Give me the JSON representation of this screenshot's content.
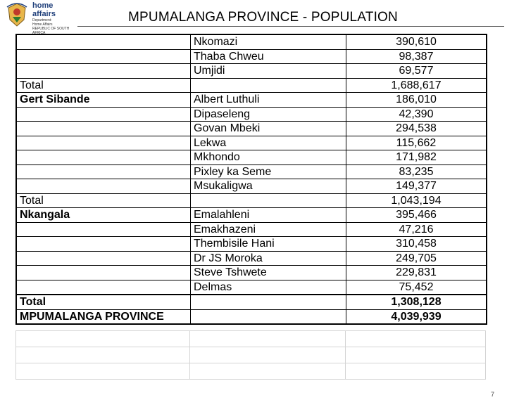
{
  "header": {
    "logo_line1": "home affairs",
    "logo_line2": "Department:",
    "logo_line3": "Home Affairs",
    "logo_line4": "REPUBLIC OF SOUTH AFRICA",
    "title": "MPUMALANGA PROVINCE - POPULATION"
  },
  "table": {
    "rows": [
      {
        "district": "",
        "municipality": "Nkomazi",
        "population": "390,610"
      },
      {
        "district": "",
        "municipality": "Thaba Chweu",
        "population": "98,387"
      },
      {
        "district": "",
        "municipality": "Umjidi",
        "population": "69,577"
      },
      {
        "district": "Total",
        "municipality": "",
        "population": "1,688,617"
      },
      {
        "district": "Gert Sibande",
        "municipality": "Albert Luthuli",
        "population": "186,010"
      },
      {
        "district": "",
        "municipality": "Dipaseleng",
        "population": "42,390"
      },
      {
        "district": "",
        "municipality": "Govan Mbeki",
        "population": "294,538"
      },
      {
        "district": "",
        "municipality": "Lekwa",
        "population": "115,662"
      },
      {
        "district": "",
        "municipality": "Mkhondo",
        "population": "171,982"
      },
      {
        "district": "",
        "municipality": "Pixley ka Seme",
        "population": "83,235"
      },
      {
        "district": "",
        "municipality": "Msukaligwa",
        "population": "149,377"
      },
      {
        "district": "Total",
        "municipality": "",
        "population": "1,043,194"
      },
      {
        "district": "Nkangala",
        "municipality": "Emalahleni",
        "population": "395,466"
      },
      {
        "district": "",
        "municipality": "Emakhazeni",
        "population": "47,216"
      },
      {
        "district": "",
        "municipality": "Thembisile Hani",
        "population": "310,458"
      },
      {
        "district": "",
        "municipality": "Dr JS Moroka",
        "population": "249,705"
      },
      {
        "district": "",
        "municipality": "Steve Tshwete",
        "population": "229,831"
      },
      {
        "district": "",
        "municipality": "Delmas",
        "population": "75,452"
      },
      {
        "district": "Total",
        "municipality": "",
        "population": "1,308,128"
      },
      {
        "district": "MPUMALANGA PROVINCE",
        "municipality": "",
        "population": "4,039,939"
      }
    ]
  },
  "footer": {
    "page_number": "7"
  }
}
